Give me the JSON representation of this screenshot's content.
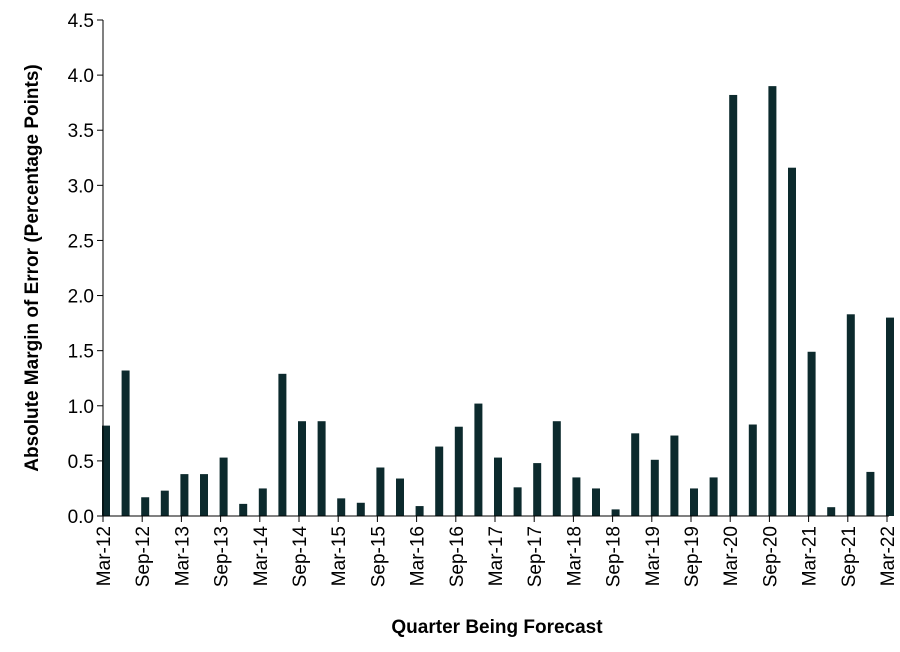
{
  "chart_data": {
    "type": "bar",
    "title": "",
    "xlabel": "Quarter Being Forecast",
    "ylabel": "Absolute Margin of Error (Percentage Points)",
    "ylim": [
      0,
      4.5
    ],
    "yticks": [
      "0.0",
      "0.5",
      "1.0",
      "1.5",
      "2.0",
      "2.5",
      "3.0",
      "3.5",
      "4.0",
      "4.5"
    ],
    "ytick_values": [
      0,
      0.5,
      1.0,
      1.5,
      2.0,
      2.5,
      3.0,
      3.5,
      4.0,
      4.5
    ],
    "xtick_labels": [
      "Mar-12",
      "Sep-12",
      "Mar-13",
      "Sep-13",
      "Mar-14",
      "Sep-14",
      "Mar-15",
      "Sep-15",
      "Mar-16",
      "Sep-16",
      "Mar-17",
      "Sep-17",
      "Mar-18",
      "Sep-18",
      "Mar-19",
      "Sep-19",
      "Mar-20",
      "Sep-20",
      "Mar-21",
      "Sep-21",
      "Mar-22"
    ],
    "categories": [
      "Mar-12",
      "Jun-12",
      "Sep-12",
      "Dec-12",
      "Mar-13",
      "Jun-13",
      "Sep-13",
      "Dec-13",
      "Mar-14",
      "Jun-14",
      "Sep-14",
      "Dec-14",
      "Mar-15",
      "Jun-15",
      "Sep-15",
      "Dec-15",
      "Mar-16",
      "Jun-16",
      "Sep-16",
      "Dec-16",
      "Mar-17",
      "Jun-17",
      "Sep-17",
      "Dec-17",
      "Mar-18",
      "Jun-18",
      "Sep-18",
      "Dec-18",
      "Mar-19",
      "Jun-19",
      "Sep-19",
      "Dec-19",
      "Mar-20",
      "Jun-20",
      "Sep-20",
      "Dec-20",
      "Mar-21",
      "Jun-21",
      "Sep-21",
      "Dec-21",
      "Mar-22"
    ],
    "values": [
      0.82,
      1.32,
      0.17,
      0.23,
      0.38,
      0.38,
      0.53,
      0.11,
      0.25,
      1.29,
      0.86,
      0.86,
      0.16,
      0.12,
      0.44,
      0.34,
      0.09,
      0.63,
      0.81,
      1.02,
      0.53,
      0.26,
      0.48,
      0.86,
      0.35,
      0.25,
      0.06,
      0.75,
      0.51,
      0.73,
      0.25,
      0.35,
      3.82,
      0.83,
      3.9,
      3.16,
      1.49,
      0.08,
      1.83,
      0.4,
      1.8
    ],
    "bar_color": "#0c2a2d",
    "grid": false,
    "legend": "none"
  }
}
